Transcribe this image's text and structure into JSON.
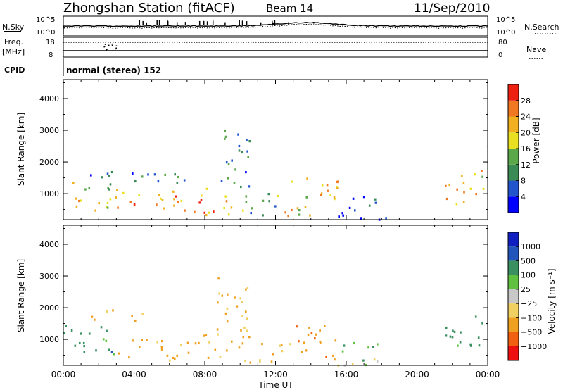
{
  "header": {
    "station": "Zhongshan Station (fitACF)",
    "beam": "Beam 14",
    "date": "11/Sep/2010"
  },
  "strip_labels": {
    "nsky": "N.Sky",
    "nsky_ticks": [
      "10^5",
      "10^0"
    ],
    "nsearch": "N.Search",
    "nsearch_ticks": [
      "10^5",
      "10^0"
    ],
    "freq_line1": "Freq.",
    "freq_line2": "[MHz]",
    "freq_ticks": [
      "18",
      "8"
    ],
    "nave": "Nave",
    "nave_ticks": [
      "80",
      "0"
    ],
    "cpid": "CPID",
    "mode": "normal (stereo) 152"
  },
  "colors": {
    "power_scale": [
      "#0000ff",
      "#2255cc",
      "#3a8a55",
      "#5aa84a",
      "#e8e020",
      "#f0b020",
      "#f07820",
      "#ee2010"
    ],
    "velocity_scale": [
      "#ee1010",
      "#f06010",
      "#f0a020",
      "#f0d060",
      "#c8c8c8",
      "#60c040",
      "#3a9060",
      "#2255bb",
      "#1020c0"
    ]
  },
  "chart_data": [
    {
      "type": "heatmap",
      "title": "",
      "xlabel": "Time UT",
      "ylabel": "Slant Range [km]",
      "x_ticks": [
        "00:00",
        "04:00",
        "08:00",
        "12:00",
        "16:00",
        "20:00",
        "00:00"
      ],
      "x_range_hours": [
        0,
        24
      ],
      "y_ticks": [
        "1000",
        "2000",
        "3000",
        "4000"
      ],
      "y_range_km": [
        180,
        4600
      ],
      "colorbar_label": "Power [dB]",
      "colorbar_ticks": [
        "28",
        "24",
        "20",
        "16",
        "12",
        "8",
        "4"
      ],
      "colorbar_range": [
        0,
        32
      ],
      "echo_regions": [
        {
          "x": [
            0.0,
            3.0
          ],
          "y": [
            400,
            1500
          ],
          "value": 18
        },
        {
          "x": [
            1.5,
            4.0
          ],
          "y": [
            1500,
            1900
          ],
          "value": 6
        },
        {
          "x": [
            3.0,
            7.0
          ],
          "y": [
            350,
            1100
          ],
          "value": 24
        },
        {
          "x": [
            4.0,
            7.5
          ],
          "y": [
            1300,
            1800
          ],
          "value": 8
        },
        {
          "x": [
            7.0,
            10.0
          ],
          "y": [
            350,
            1200
          ],
          "value": 22
        },
        {
          "x": [
            8.5,
            10.5
          ],
          "y": [
            1200,
            3100
          ],
          "value": 9
        },
        {
          "x": [
            10.0,
            12.5
          ],
          "y": [
            300,
            1100
          ],
          "value": 14
        },
        {
          "x": [
            12.5,
            15.5
          ],
          "y": [
            300,
            1700
          ],
          "value": 20
        },
        {
          "x": [
            15.5,
            18.5
          ],
          "y": [
            200,
            1000
          ],
          "value": 7
        },
        {
          "x": [
            21.5,
            23.8
          ],
          "y": [
            600,
            1800
          ],
          "value": 20
        }
      ]
    },
    {
      "type": "heatmap",
      "title": "",
      "xlabel": "Time UT",
      "ylabel": "Slant Range [km]",
      "x_ticks": [
        "00:00",
        "04:00",
        "08:00",
        "12:00",
        "16:00",
        "20:00",
        "00:00"
      ],
      "x_range_hours": [
        0,
        24
      ],
      "y_ticks": [
        "1000",
        "2000",
        "3000",
        "4000"
      ],
      "y_range_km": [
        180,
        4600
      ],
      "colorbar_label": "Velocity [m s⁻¹]",
      "colorbar_ticks": [
        "1000",
        "500",
        "100",
        "25",
        "−25",
        "−100",
        "−500",
        "−1000"
      ],
      "echo_regions": [
        {
          "x": [
            0.0,
            3.0
          ],
          "y": [
            400,
            1500
          ],
          "value": 300
        },
        {
          "x": [
            1.5,
            4.5
          ],
          "y": [
            1600,
            2000
          ],
          "value": -150
        },
        {
          "x": [
            3.0,
            7.0
          ],
          "y": [
            350,
            1100
          ],
          "value": -200
        },
        {
          "x": [
            7.0,
            10.5
          ],
          "y": [
            350,
            1200
          ],
          "value": -250
        },
        {
          "x": [
            8.5,
            10.5
          ],
          "y": [
            1200,
            3100
          ],
          "value": -120
        },
        {
          "x": [
            10.5,
            13.0
          ],
          "y": [
            300,
            1000
          ],
          "value": -150
        },
        {
          "x": [
            13.0,
            15.5
          ],
          "y": [
            300,
            1600
          ],
          "value": -300
        },
        {
          "x": [
            15.5,
            18.5
          ],
          "y": [
            200,
            1000
          ],
          "value": 60
        },
        {
          "x": [
            21.5,
            23.8
          ],
          "y": [
            600,
            1800
          ],
          "value": 200
        }
      ]
    }
  ]
}
